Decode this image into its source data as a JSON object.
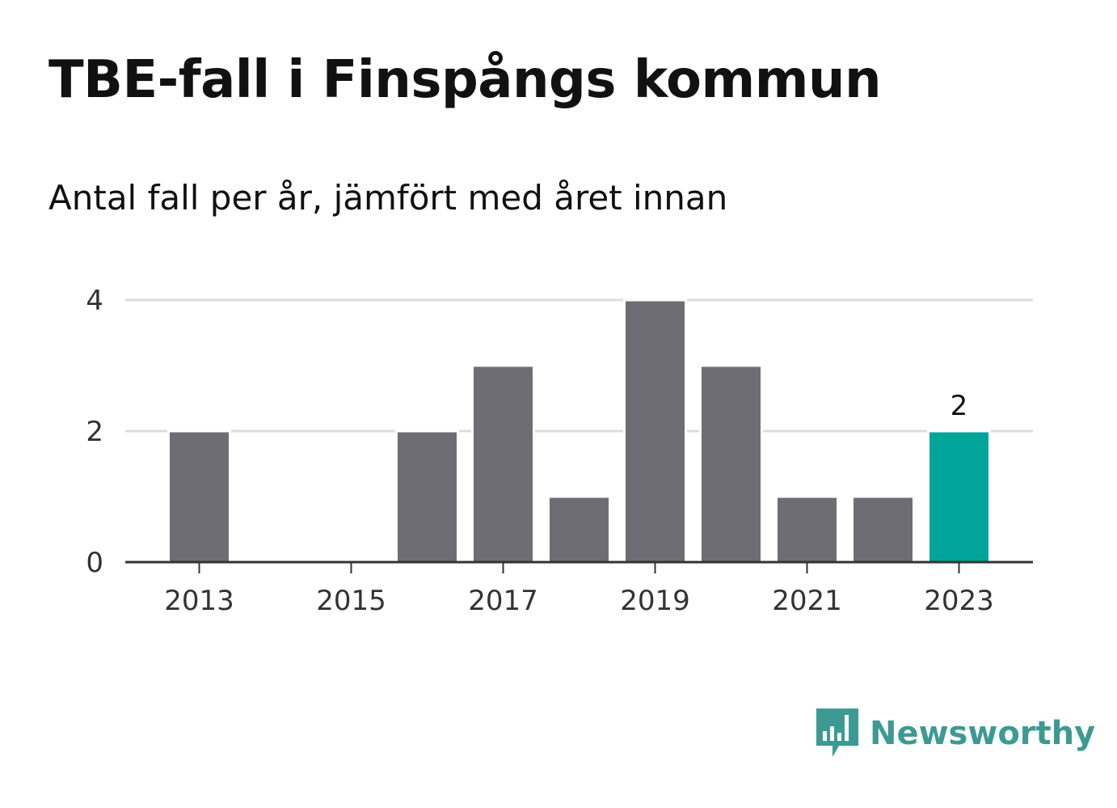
{
  "title": "TBE-fall i Finspångs kommun",
  "subtitle": "Antal fall per år, jämfört med året innan",
  "brand": {
    "name": "Newsworthy",
    "icon": "newsworthy-logo-icon",
    "color": "#3d9a92"
  },
  "chart_data": {
    "type": "bar",
    "categories": [
      2013,
      2014,
      2015,
      2016,
      2017,
      2018,
      2019,
      2020,
      2021,
      2022,
      2023
    ],
    "values": [
      2,
      0,
      0,
      2,
      3,
      1,
      4,
      3,
      1,
      1,
      2
    ],
    "x_tick_labels": [
      "2013",
      "2015",
      "2017",
      "2019",
      "2021",
      "2023"
    ],
    "y_ticks": [
      0,
      2,
      4
    ],
    "ylim": [
      0,
      4
    ],
    "grid": true,
    "highlight": {
      "category": 2023,
      "label": "2",
      "color": "#00a59a"
    },
    "bar_color": "#6e6d73"
  }
}
